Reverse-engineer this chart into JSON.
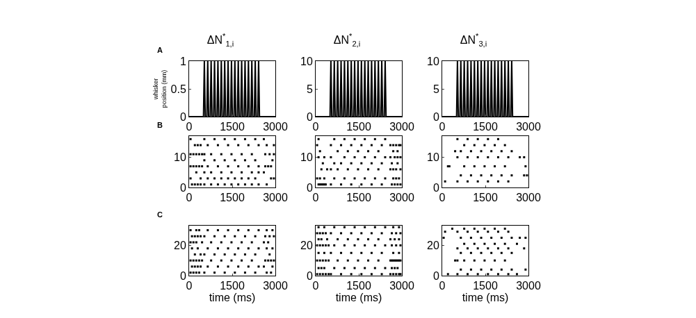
{
  "chart_data": [
    {
      "type": "line",
      "title": "ΔN$^{*}$$_{1,i}$",
      "ylabel": "whisker position (mm)",
      "annotations": [
        "A"
      ],
      "xlim": [
        0,
        3000
      ],
      "xticks": [
        0,
        1500,
        3000
      ],
      "ylim": [
        0,
        1
      ],
      "yticks": [
        0,
        0.5,
        1
      ],
      "marker": "none",
      "line_style": "solid",
      "series": [
        {
          "color": "#000000",
          "x": [
            0,
            500,
            530,
            560,
            618,
            648,
            678,
            736,
            766,
            796,
            854,
            884,
            914,
            972,
            1002,
            1032,
            1090,
            1120,
            1150,
            1208,
            1238,
            1268,
            1326,
            1356,
            1386,
            1444,
            1474,
            1504,
            1562,
            1592,
            1622,
            1680,
            1710,
            1740,
            1798,
            1828,
            1858,
            1916,
            1946,
            1976,
            2034,
            2064,
            2094,
            2152,
            2182,
            2212,
            2270,
            2300,
            2330,
            2388,
            2418,
            2448,
            3000
          ],
          "values": [
            0,
            0,
            1,
            0,
            0,
            1,
            0,
            0,
            1,
            0,
            0,
            1,
            0,
            0,
            1,
            0,
            0,
            1,
            0,
            0,
            1,
            0,
            0,
            1,
            0,
            0,
            1,
            0,
            0,
            1,
            0,
            0,
            1,
            0,
            0,
            1,
            0,
            0,
            1,
            0,
            0,
            1,
            0,
            0,
            1,
            0,
            0,
            1,
            0,
            0,
            1,
            0,
            0
          ]
        }
      ]
    },
    {
      "type": "line",
      "title": "ΔN$^{*}$$_{2,i}$",
      "xlim": [
        0,
        3000
      ],
      "xticks": [
        0,
        1500,
        3000
      ],
      "ylim": [
        0,
        10
      ],
      "yticks": [
        0,
        5,
        10
      ],
      "marker": "none",
      "line_style": "solid",
      "series": [
        {
          "color": "#000000",
          "x": [
            0,
            500,
            530,
            560,
            618,
            648,
            678,
            736,
            766,
            796,
            854,
            884,
            914,
            972,
            1002,
            1032,
            1090,
            1120,
            1150,
            1208,
            1238,
            1268,
            1326,
            1356,
            1386,
            1444,
            1474,
            1504,
            1562,
            1592,
            1622,
            1680,
            1710,
            1740,
            1798,
            1828,
            1858,
            1916,
            1946,
            1976,
            2034,
            2064,
            2094,
            2152,
            2182,
            2212,
            2270,
            2300,
            2330,
            2388,
            2418,
            2448,
            3000
          ],
          "values": [
            0,
            0,
            10,
            0,
            0,
            10,
            0,
            0,
            10,
            0,
            0,
            10,
            0,
            0,
            10,
            0,
            0,
            10,
            0,
            0,
            10,
            0,
            0,
            10,
            0,
            0,
            10,
            0,
            0,
            10,
            0,
            0,
            10,
            0,
            0,
            10,
            0,
            0,
            10,
            0,
            0,
            10,
            0,
            0,
            10,
            0,
            0,
            10,
            0,
            0,
            10,
            0,
            0
          ]
        }
      ]
    },
    {
      "type": "line",
      "title": "ΔN$^{*}$$_{3,i}$",
      "xlim": [
        0,
        3000
      ],
      "xticks": [
        0,
        1500,
        3000
      ],
      "ylim": [
        0,
        10
      ],
      "yticks": [
        0,
        5,
        10
      ],
      "marker": "none",
      "line_style": "solid",
      "series": [
        {
          "color": "#000000",
          "x": [
            0,
            500,
            530,
            560,
            618,
            648,
            678,
            736,
            766,
            796,
            854,
            884,
            914,
            972,
            1002,
            1032,
            1090,
            1120,
            1150,
            1208,
            1238,
            1268,
            1326,
            1356,
            1386,
            1444,
            1474,
            1504,
            1562,
            1592,
            1622,
            1680,
            1710,
            1740,
            1798,
            1828,
            1858,
            1916,
            1946,
            1976,
            2034,
            2064,
            2094,
            2152,
            2182,
            2212,
            2270,
            2300,
            2330,
            2388,
            2418,
            2448,
            3000
          ],
          "values": [
            0,
            0,
            10,
            0,
            0,
            10,
            0,
            0,
            10,
            0,
            0,
            10,
            0,
            0,
            10,
            0,
            0,
            10,
            0,
            0,
            10,
            0,
            0,
            10,
            0,
            0,
            10,
            0,
            0,
            10,
            0,
            0,
            10,
            0,
            0,
            10,
            0,
            0,
            10,
            0,
            0,
            10,
            0,
            0,
            10,
            0,
            0,
            10,
            0,
            0,
            10,
            0,
            0
          ]
        }
      ]
    },
    {
      "type": "scatter",
      "annotations": [
        "B"
      ],
      "xlim": [
        0,
        3000
      ],
      "xticks": [
        0,
        1500,
        3000
      ],
      "ylim": [
        0,
        17
      ],
      "yticks": [
        0,
        10
      ],
      "marker": "square",
      "series": [
        {
          "color": "#000000",
          "x": [
            100,
            200,
            300,
            400,
            530,
            766,
            1002,
            1238,
            1474,
            1710,
            1946,
            2182,
            2418,
            2700
          ],
          "values": [
            1,
            1,
            1,
            1,
            1,
            1,
            1,
            1,
            1,
            1,
            1,
            1,
            1,
            1
          ]
        },
        {
          "color": "#000000",
          "x": [
            50,
            400,
            648,
            884,
            1120,
            1356,
            1592,
            1828,
            2064,
            2300,
            2850,
            2950
          ],
          "values": [
            3,
            3,
            3,
            3,
            3,
            3,
            3,
            3,
            3,
            3,
            3,
            3
          ]
        },
        {
          "color": "#000000",
          "x": [
            250,
            530,
            766,
            1120,
            1474,
            1828,
            2182,
            2418,
            2600
          ],
          "values": [
            5,
            5,
            5,
            5,
            5,
            5,
            5,
            5,
            5
          ]
        },
        {
          "color": "#000000",
          "x": [
            50,
            150,
            250,
            350,
            450,
            648,
            1002,
            1356,
            1710,
            2064,
            2418,
            2650,
            2750,
            2850
          ],
          "values": [
            7,
            7,
            7,
            7,
            7,
            7,
            7,
            7,
            7,
            7,
            7,
            7,
            7,
            7
          ]
        },
        {
          "color": "#000000",
          "x": [
            530,
            884,
            1238,
            1592,
            1946,
            2300,
            2900
          ],
          "values": [
            9,
            9,
            9,
            9,
            9,
            9,
            9
          ]
        },
        {
          "color": "#000000",
          "x": [
            50,
            150,
            250,
            350,
            450,
            530,
            766,
            1120,
            1474,
            1828,
            2182,
            2650,
            2800,
            2950
          ],
          "values": [
            11,
            11,
            11,
            11,
            11,
            11,
            11,
            11,
            11,
            11,
            11,
            11,
            11,
            11
          ]
        },
        {
          "color": "#000000",
          "x": [
            200,
            300,
            400,
            648,
            1002,
            1356,
            1710,
            2064,
            2418,
            2700,
            2950
          ],
          "values": [
            14,
            14,
            14,
            14,
            14,
            14,
            14,
            14,
            14,
            14,
            14
          ]
        },
        {
          "color": "#000000",
          "x": [
            50,
            530,
            884,
            1238,
            1592,
            1946,
            2300,
            2600
          ],
          "values": [
            16,
            16,
            16,
            16,
            16,
            16,
            16,
            16
          ]
        }
      ]
    },
    {
      "type": "scatter",
      "xlim": [
        0,
        3000
      ],
      "xticks": [
        0,
        1500,
        3000
      ],
      "ylim": [
        0,
        17
      ],
      "yticks": [
        0,
        10
      ],
      "marker": "square",
      "series": [
        {
          "color": "#000000",
          "x": [
            100,
            150,
            200,
            250,
            300,
            350,
            530,
            884,
            1238,
            1592,
            1946,
            2300,
            2650,
            2750,
            2850,
            2950
          ],
          "values": [
            1,
            1,
            1,
            1,
            1,
            1,
            1,
            1,
            1,
            1,
            1,
            1,
            1,
            1,
            1,
            1
          ]
        },
        {
          "color": "#000000",
          "x": [
            50,
            150,
            300,
            648,
            1002,
            1356,
            1710,
            2064,
            2418,
            2700,
            2800,
            2900
          ],
          "values": [
            3,
            3,
            3,
            3,
            3,
            3,
            3,
            3,
            3,
            3,
            3,
            3
          ]
        },
        {
          "color": "#000000",
          "x": [
            200,
            400,
            530,
            766,
            1120,
            1474,
            1828,
            2182,
            2600,
            2700,
            2800,
            2950
          ],
          "values": [
            6,
            6,
            6,
            6,
            6,
            6,
            6,
            6,
            6,
            6,
            6,
            6
          ]
        },
        {
          "color": "#000000",
          "x": [
            250,
            648,
            884,
            1238,
            1592,
            1946,
            2300,
            2650,
            2850
          ],
          "values": [
            8,
            8,
            8,
            8,
            8,
            8,
            8,
            8,
            8
          ]
        },
        {
          "color": "#000000",
          "x": [
            100,
            300,
            530,
            1002,
            1356,
            1710,
            2064,
            2418,
            2600,
            2750,
            2850,
            2950
          ],
          "values": [
            10,
            10,
            10,
            10,
            10,
            10,
            10,
            10,
            10,
            10,
            10,
            10
          ]
        },
        {
          "color": "#000000",
          "x": [
            150,
            766,
            1120,
            1474,
            1828,
            2182,
            2700,
            2850
          ],
          "values": [
            12,
            12,
            12,
            12,
            12,
            12,
            12,
            12
          ]
        },
        {
          "color": "#000000",
          "x": [
            50,
            530,
            884,
            1238,
            1592,
            1946,
            2300,
            2600,
            2700,
            2800,
            2900,
            2950
          ],
          "values": [
            14,
            14,
            14,
            14,
            14,
            14,
            14,
            14,
            14,
            14,
            14,
            14
          ]
        },
        {
          "color": "#000000",
          "x": [
            100,
            648,
            1002,
            1356,
            1710,
            2064,
            2418
          ],
          "values": [
            16,
            16,
            16,
            16,
            16,
            16,
            16
          ]
        }
      ]
    },
    {
      "type": "scatter",
      "xlim": [
        0,
        3000
      ],
      "xticks": [
        0,
        1500,
        3000
      ],
      "ylim": [
        0,
        17
      ],
      "yticks": [
        0,
        10
      ],
      "marker": "square",
      "series": [
        {
          "color": "#000000",
          "x": [
            100,
            530,
            884,
            1238,
            1592,
            1946,
            2300
          ],
          "values": [
            2,
            2,
            2,
            2,
            2,
            2,
            2
          ]
        },
        {
          "color": "#000000",
          "x": [
            648,
            1002,
            1356,
            1710,
            2064,
            2418,
            2850,
            2950
          ],
          "values": [
            4,
            4,
            4,
            4,
            4,
            4,
            4,
            4
          ]
        },
        {
          "color": "#000000",
          "x": [
            200,
            250,
            766,
            1120,
            1474,
            1828,
            2182,
            2900
          ],
          "values": [
            7,
            7,
            7,
            7,
            7,
            7,
            7,
            7
          ]
        },
        {
          "color": "#000000",
          "x": [
            530,
            884,
            1238,
            1592,
            1946,
            2300,
            2700,
            2850
          ],
          "values": [
            10,
            10,
            10,
            10,
            10,
            10,
            10,
            10
          ]
        },
        {
          "color": "#000000",
          "x": [
            450,
            648,
            1002,
            1356,
            1710,
            2064,
            2418
          ],
          "values": [
            12,
            12,
            12,
            12,
            12,
            12,
            12
          ]
        },
        {
          "color": "#000000",
          "x": [
            766,
            1120,
            1474,
            1828,
            2182
          ],
          "values": [
            14,
            14,
            14,
            14,
            14
          ]
        },
        {
          "color": "#000000",
          "x": [
            530,
            884,
            1238,
            1592,
            1946
          ],
          "values": [
            16,
            16,
            16,
            16,
            16
          ]
        }
      ]
    },
    {
      "type": "scatter",
      "xlabel": "time (ms)",
      "annotations": [
        "C"
      ],
      "xlim": [
        0,
        3000
      ],
      "xticks": [
        0,
        1500,
        3000
      ],
      "ylim": [
        0,
        33
      ],
      "yticks": [
        0,
        20
      ],
      "marker": "square",
      "series": [
        {
          "color": "#000000",
          "x": [
            50,
            150,
            250,
            350,
            530,
            884,
            1238,
            1592,
            1946,
            2300,
            2700,
            2850
          ],
          "values": [
            2,
            2,
            2,
            2,
            2,
            2,
            2,
            2,
            2,
            2,
            2,
            2
          ]
        },
        {
          "color": "#000000",
          "x": [
            100,
            200,
            300,
            400,
            648,
            1002,
            1356,
            1710,
            2064,
            2418,
            2600,
            2900
          ],
          "values": [
            6,
            6,
            6,
            6,
            6,
            6,
            6,
            6,
            6,
            6,
            6,
            6
          ]
        },
        {
          "color": "#000000",
          "x": [
            50,
            150,
            250,
            350,
            450,
            766,
            1120,
            1474,
            1828,
            2182,
            2650,
            2750,
            2850,
            2950
          ],
          "values": [
            10,
            10,
            10,
            10,
            10,
            10,
            10,
            10,
            10,
            10,
            10,
            10,
            10,
            10
          ]
        },
        {
          "color": "#000000",
          "x": [
            200,
            400,
            530,
            884,
            1238,
            1592,
            1946,
            2300,
            2800
          ],
          "values": [
            14,
            14,
            14,
            14,
            14,
            14,
            14,
            14,
            14
          ]
        },
        {
          "color": "#000000",
          "x": [
            100,
            300,
            648,
            1002,
            1356,
            1710,
            2064,
            2418,
            2700,
            2900
          ],
          "values": [
            18,
            18,
            18,
            18,
            18,
            18,
            18,
            18,
            18,
            18
          ]
        },
        {
          "color": "#000000",
          "x": [
            50,
            150,
            250,
            450,
            766,
            1120,
            1474,
            1828,
            2182,
            2600,
            2750
          ],
          "values": [
            22,
            22,
            22,
            22,
            22,
            22,
            22,
            22,
            22,
            22,
            22
          ]
        },
        {
          "color": "#000000",
          "x": [
            100,
            200,
            300,
            400,
            530,
            884,
            1238,
            1592,
            1946,
            2300,
            2650,
            2800,
            2950
          ],
          "values": [
            26,
            26,
            26,
            26,
            26,
            26,
            26,
            26,
            26,
            26,
            26,
            26,
            26
          ]
        },
        {
          "color": "#000000",
          "x": [
            50,
            250,
            350,
            648,
            1002,
            1356,
            1710,
            2064,
            2418,
            2700,
            2900
          ],
          "values": [
            30,
            30,
            30,
            30,
            30,
            30,
            30,
            30,
            30,
            30,
            30
          ]
        }
      ]
    },
    {
      "type": "scatter",
      "xlabel": "time (ms)",
      "xlim": [
        0,
        3000
      ],
      "xticks": [
        0,
        1500,
        3000
      ],
      "ylim": [
        0,
        33
      ],
      "yticks": [
        0,
        20
      ],
      "marker": "square",
      "series": [
        {
          "color": "#000000",
          "x": [
            50,
            150,
            250,
            350,
            450,
            530,
            884,
            1238,
            1592,
            1946,
            2300,
            2600,
            2700,
            2800,
            2900,
            2950
          ],
          "values": [
            1,
            1,
            1,
            1,
            1,
            1,
            1,
            1,
            1,
            1,
            1,
            1,
            1,
            1,
            1,
            1
          ]
        },
        {
          "color": "#000000",
          "x": [
            100,
            200,
            300,
            648,
            1002,
            1356,
            1710,
            2064,
            2418,
            2650,
            2750,
            2850
          ],
          "values": [
            5,
            5,
            5,
            5,
            5,
            5,
            5,
            5,
            5,
            5,
            5,
            5
          ]
        },
        {
          "color": "#000000",
          "x": [
            50,
            150,
            250,
            350,
            450,
            766,
            1120,
            1474,
            1828,
            2182,
            2600,
            2650,
            2700,
            2750,
            2800,
            2850,
            2900,
            2950
          ],
          "values": [
            10,
            10,
            10,
            10,
            10,
            10,
            10,
            10,
            10,
            10,
            10,
            10,
            10,
            10,
            10,
            10,
            10,
            10
          ]
        },
        {
          "color": "#000000",
          "x": [
            100,
            300,
            530,
            884,
            1238,
            1592,
            1946,
            2300,
            2700,
            2900
          ],
          "values": [
            15,
            15,
            15,
            15,
            15,
            15,
            15,
            15,
            15,
            15
          ]
        },
        {
          "color": "#000000",
          "x": [
            50,
            150,
            250,
            350,
            450,
            648,
            1002,
            1356,
            1710,
            2064,
            2418,
            2650,
            2800,
            2950
          ],
          "values": [
            20,
            20,
            20,
            20,
            20,
            20,
            20,
            20,
            20,
            20,
            20,
            20,
            20,
            20
          ]
        },
        {
          "color": "#000000",
          "x": [
            100,
            200,
            400,
            766,
            1120,
            1474,
            1828,
            2182,
            2600,
            2750,
            2900
          ],
          "values": [
            24,
            24,
            24,
            24,
            24,
            24,
            24,
            24,
            24,
            24,
            24
          ]
        },
        {
          "color": "#000000",
          "x": [
            50,
            150,
            250,
            350,
            530,
            884,
            1238,
            1592,
            1946,
            2300,
            2650,
            2800,
            2950
          ],
          "values": [
            28,
            28,
            28,
            28,
            28,
            28,
            28,
            28,
            28,
            28,
            28,
            28,
            28
          ]
        },
        {
          "color": "#000000",
          "x": [
            100,
            300,
            648,
            1002,
            1356,
            1710,
            2064,
            2418,
            2700,
            2900
          ],
          "values": [
            32,
            32,
            32,
            32,
            32,
            32,
            32,
            32,
            32,
            32
          ]
        }
      ]
    },
    {
      "type": "scatter",
      "xlabel": "time (ms)",
      "xlim": [
        0,
        3000
      ],
      "xticks": [
        0,
        1500,
        3000
      ],
      "ylim": [
        0,
        33
      ],
      "yticks": [
        0,
        20
      ],
      "marker": "square",
      "series": [
        {
          "color": "#000000",
          "x": [
            200,
            530,
            884,
            1238,
            1592,
            1946,
            2300,
            2600
          ],
          "values": [
            1,
            1,
            1,
            1,
            1,
            1,
            1,
            1
          ]
        },
        {
          "color": "#000000",
          "x": [
            648,
            1002,
            1356,
            1710,
            2064,
            2418,
            2900
          ],
          "values": [
            4,
            4,
            4,
            4,
            4,
            4,
            4
          ]
        },
        {
          "color": "#000000",
          "x": [
            450,
            530,
            766,
            1120,
            1474,
            1828,
            2182
          ],
          "values": [
            10,
            10,
            10,
            10,
            10,
            10,
            10
          ]
        },
        {
          "color": "#000000",
          "x": [
            648,
            1002,
            1356,
            1710,
            2064,
            2418
          ],
          "values": [
            15,
            15,
            15,
            15,
            15,
            15
          ]
        },
        {
          "color": "#000000",
          "x": [
            530,
            884,
            1238,
            1592,
            1946,
            2300,
            2850
          ],
          "values": [
            18,
            18,
            18,
            18,
            18,
            18,
            18
          ]
        },
        {
          "color": "#000000",
          "x": [
            766,
            1120,
            1474,
            1828,
            2182,
            2600
          ],
          "values": [
            21,
            21,
            21,
            21,
            21,
            21
          ]
        },
        {
          "color": "#000000",
          "x": [
            50,
            648,
            1002,
            1356,
            1710,
            2064,
            2418,
            2700,
            2900
          ],
          "values": [
            25,
            25,
            25,
            25,
            25,
            25,
            25,
            25,
            25
          ]
        },
        {
          "color": "#000000",
          "x": [
            100,
            530,
            884,
            1238,
            1592,
            1946,
            2300
          ],
          "values": [
            29,
            29,
            29,
            29,
            29,
            29,
            29
          ]
        },
        {
          "color": "#000000",
          "x": [
            350,
            766,
            1120,
            1474,
            1828,
            2182
          ],
          "values": [
            31,
            31,
            31,
            31,
            31,
            31
          ]
        }
      ]
    }
  ]
}
